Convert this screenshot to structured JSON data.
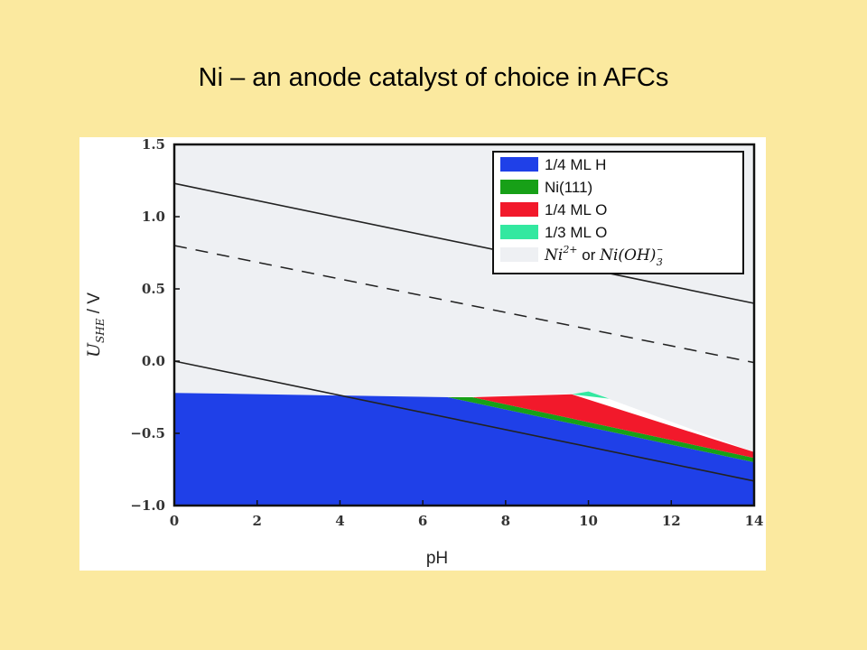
{
  "slide": {
    "title": "Ni – an anode catalyst of choice in AFCs"
  },
  "chart_data": {
    "type": "area",
    "xlabel": "pH",
    "ylabel": "U_SHE / V",
    "xlim": [
      0,
      14
    ],
    "ylim": [
      -1.0,
      1.5
    ],
    "xticks": [
      0,
      2,
      4,
      6,
      8,
      10,
      12,
      14
    ],
    "yticks": [
      1.5,
      1.0,
      0.5,
      0.0,
      -0.5,
      -1.0
    ],
    "xtick_labels": [
      "0",
      "2",
      "4",
      "6",
      "8",
      "10",
      "12",
      "14"
    ],
    "ytick_labels": [
      "1.5",
      "1.0",
      "0.5",
      "0.0",
      "−0.5",
      "−1.0"
    ],
    "grid": false,
    "legend_position": "top-right",
    "legend": [
      {
        "label": "1/4 ML H",
        "color": "#1f40e8"
      },
      {
        "label": "Ni(111)",
        "color": "#17a017"
      },
      {
        "label": "1/4 ML O",
        "color": "#f2192b"
      },
      {
        "label": "1/3 ML O",
        "color": "#33e8a0"
      },
      {
        "label_math_1": "Ni",
        "label_sup_1": "2+",
        "label_or": "or",
        "label_math_2": "Ni(OH)",
        "label_sub_2": "3",
        "label_sup_2": "−",
        "color": "#eef0f3"
      }
    ],
    "regions": [
      {
        "name": "Ni2+ or Ni(OH)3-",
        "color": "#eef0f3",
        "points": [
          [
            0,
            1.5
          ],
          [
            14,
            1.5
          ],
          [
            14,
            -0.63
          ],
          [
            10.1,
            -0.22
          ],
          [
            6.6,
            -0.25
          ],
          [
            0,
            -0.22
          ]
        ]
      },
      {
        "name": "1/4 ML H",
        "color": "#1f40e8",
        "points": [
          [
            0,
            -1.0
          ],
          [
            14,
            -1.0
          ],
          [
            14,
            -0.7
          ],
          [
            6.6,
            -0.25
          ],
          [
            0,
            -0.22
          ]
        ]
      },
      {
        "name": "Ni(111)",
        "color": "#17a017",
        "points": [
          [
            6.6,
            -0.25
          ],
          [
            14,
            -0.7
          ],
          [
            14,
            -0.67
          ],
          [
            7.2,
            -0.25
          ]
        ]
      },
      {
        "name": "1/4 ML O",
        "color": "#f2192b",
        "points": [
          [
            7.2,
            -0.25
          ],
          [
            9.6,
            -0.23
          ],
          [
            14,
            -0.63
          ],
          [
            14,
            -0.67
          ]
        ]
      },
      {
        "name": "1/3 ML O",
        "color": "#33e8a0",
        "points": [
          [
            9.6,
            -0.23
          ],
          [
            10.0,
            -0.21
          ],
          [
            10.5,
            -0.26
          ]
        ]
      }
    ],
    "lines": [
      {
        "name": "O2/H2O",
        "style": "solid",
        "points": [
          [
            0,
            1.23
          ],
          [
            14,
            0.4
          ]
        ]
      },
      {
        "name": "dashed",
        "style": "dashed",
        "points": [
          [
            0,
            0.8
          ],
          [
            14,
            -0.01
          ]
        ]
      },
      {
        "name": "H+/H2",
        "style": "solid",
        "points": [
          [
            0,
            0.0
          ],
          [
            14,
            -0.83
          ]
        ]
      }
    ]
  }
}
